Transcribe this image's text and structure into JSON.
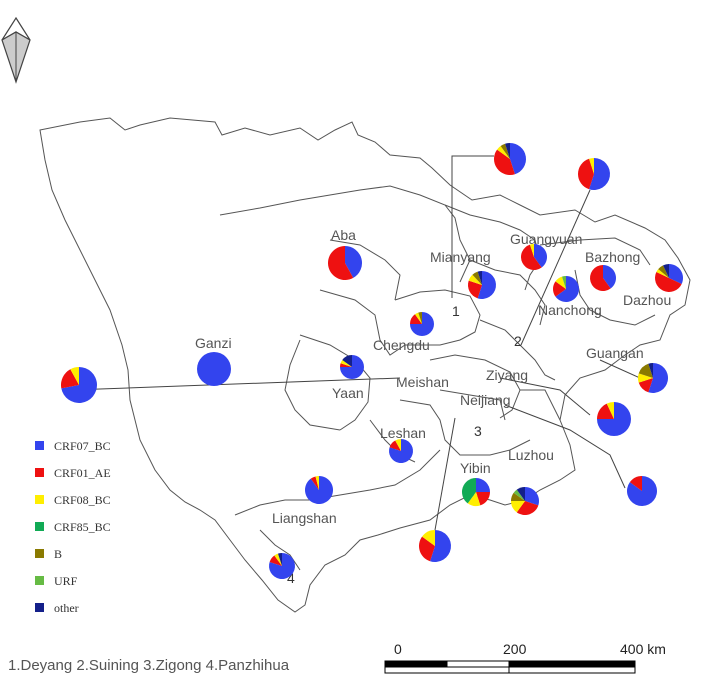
{
  "colors": {
    "CRF07_BC": "#3344ee",
    "CRF01_AE": "#ee1111",
    "CRF08_BC": "#ffee00",
    "CRF85_BC": "#11aa55",
    "B": "#8a7a00",
    "URF": "#66bb44",
    "other": "#14208a",
    "outline": "#555555"
  },
  "legend": [
    {
      "key": "CRF07_BC",
      "label": "CRF07_BC"
    },
    {
      "key": "CRF01_AE",
      "label": "CRF01_AE"
    },
    {
      "key": "CRF08_BC",
      "label": "CRF08_BC"
    },
    {
      "key": "CRF85_BC",
      "label": "CRF85_BC"
    },
    {
      "key": "B",
      "label": "B"
    },
    {
      "key": "URF",
      "label": "URF"
    },
    {
      "key": "other",
      "label": "other"
    }
  ],
  "region_labels": {
    "aba": "Aba",
    "ganzi": "Ganzi",
    "mianyang": "Mianyang",
    "guangyuan": "Guangyuan",
    "bazhong": "Bazhong",
    "nanchong": "Nanchong",
    "dazhou": "Dazhou",
    "chengdu": "Chengdu",
    "guangan": "Guangan",
    "yaan": "Yaan",
    "meishan": "Meishan",
    "ziyang": "Ziyang",
    "neijiang": "Neijiang",
    "leshan": "Leshan",
    "yibin": "Yibin",
    "luzhou": "Luzhou",
    "liangshan": "Liangshan"
  },
  "number_labels": {
    "n1": "1",
    "n2": "2",
    "n3": "3",
    "n4": "4"
  },
  "footnote": "1.Deyang 2.Suining 3.Zigong 4.Panzhihua",
  "scale_bar": {
    "t0": "0",
    "t1": "200",
    "t2": "400 km"
  },
  "pies": [
    {
      "name": "aba",
      "shares": {
        "CRF07_BC": 0.42,
        "CRF01_AE": 0.58
      }
    },
    {
      "name": "ganzi",
      "shares": {
        "CRF07_BC": 1.0
      }
    },
    {
      "name": "deyang",
      "shares": {
        "CRF07_BC": 0.45,
        "CRF01_AE": 0.4,
        "CRF08_BC": 0.05,
        "B": 0.05,
        "other": 0.05
      }
    },
    {
      "name": "guangyuan-outer",
      "shares": {
        "CRF07_BC": 0.55,
        "CRF01_AE": 0.4,
        "CRF08_BC": 0.05
      }
    },
    {
      "name": "guangyuan",
      "shares": {
        "CRF07_BC": 0.4,
        "CRF01_AE": 0.55,
        "CRF08_BC": 0.05
      }
    },
    {
      "name": "mianyang",
      "shares": {
        "CRF07_BC": 0.55,
        "CRF01_AE": 0.25,
        "CRF08_BC": 0.08,
        "B": 0.07,
        "other": 0.05
      }
    },
    {
      "name": "bazhong",
      "shares": {
        "CRF07_BC": 0.4,
        "CRF01_AE": 0.6
      }
    },
    {
      "name": "nanchong",
      "shares": {
        "CRF07_BC": 0.65,
        "CRF01_AE": 0.2,
        "CRF08_BC": 0.1,
        "URF": 0.05
      }
    },
    {
      "name": "dazhou",
      "shares": {
        "CRF07_BC": 0.32,
        "CRF01_AE": 0.5,
        "CRF08_BC": 0.04,
        "B": 0.07,
        "other": 0.07
      }
    },
    {
      "name": "chengdu",
      "shares": {
        "CRF07_BC": 0.75,
        "CRF01_AE": 0.15,
        "CRF08_BC": 0.05,
        "B": 0.05
      }
    },
    {
      "name": "yaan",
      "shares": {
        "CRF07_BC": 0.75,
        "CRF01_AE": 0.05,
        "CRF08_BC": 0.05,
        "other": 0.15
      }
    },
    {
      "name": "meishan",
      "shares": {
        "CRF07_BC": 0.72,
        "CRF01_AE": 0.2,
        "CRF08_BC": 0.08
      }
    },
    {
      "name": "guangan",
      "shares": {
        "CRF07_BC": 0.55,
        "CRF01_AE": 0.15,
        "CRF08_BC": 0.1,
        "B": 0.15,
        "other": 0.05
      }
    },
    {
      "name": "ziyang",
      "shares": {
        "CRF07_BC": 0.75,
        "CRF01_AE": 0.18,
        "CRF08_BC": 0.07
      }
    },
    {
      "name": "neijiang",
      "shares": {
        "CRF07_BC": 0.85,
        "CRF01_AE": 0.15
      }
    },
    {
      "name": "leshan",
      "shares": {
        "CRF07_BC": 0.8,
        "CRF01_AE": 0.12,
        "CRF08_BC": 0.08
      }
    },
    {
      "name": "yibin",
      "shares": {
        "CRF07_BC": 0.25,
        "CRF01_AE": 0.2,
        "CRF08_BC": 0.15,
        "CRF85_BC": 0.4
      }
    },
    {
      "name": "luzhou",
      "shares": {
        "CRF07_BC": 0.3,
        "CRF01_AE": 0.3,
        "CRF08_BC": 0.15,
        "B": 0.1,
        "URF": 0.05,
        "other": 0.1
      }
    },
    {
      "name": "liangshan",
      "shares": {
        "CRF07_BC": 0.9,
        "CRF01_AE": 0.06,
        "CRF08_BC": 0.04
      }
    },
    {
      "name": "zigong",
      "shares": {
        "CRF07_BC": 0.55,
        "CRF01_AE": 0.3,
        "CRF08_BC": 0.15
      }
    },
    {
      "name": "panzhihua",
      "shares": {
        "CRF07_BC": 0.8,
        "CRF01_AE": 0.1,
        "CRF08_BC": 0.05,
        "other": 0.05
      }
    }
  ]
}
